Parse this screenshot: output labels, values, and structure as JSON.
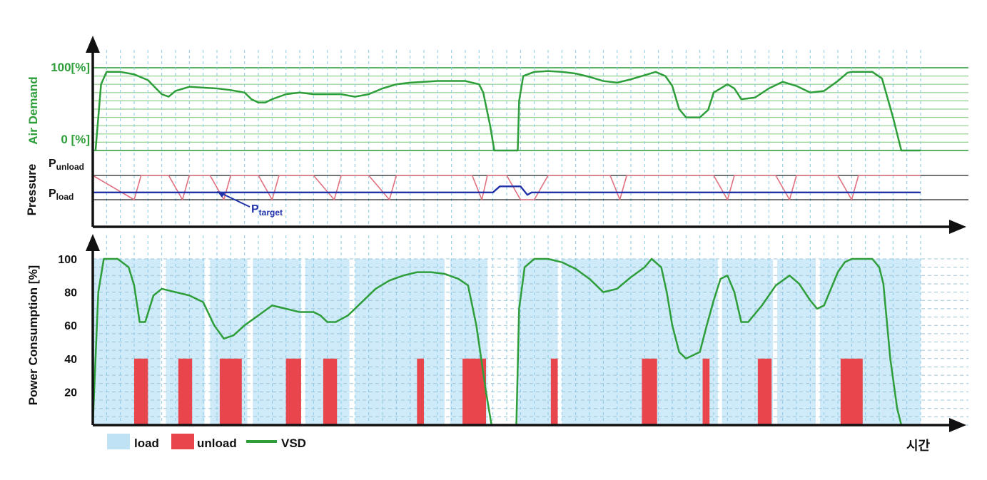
{
  "chart_data": [
    {
      "panel": "air-demand",
      "type": "line",
      "ylabel": "Air Demand",
      "tick_labels": [
        "100[%]",
        "0 [%]"
      ],
      "series": [
        {
          "name": "",
          "color": "#2e9e3a",
          "points": [
            [
              0.2,
              0
            ],
            [
              0.6,
              80
            ],
            [
              1,
              95
            ],
            [
              2,
              95
            ],
            [
              3,
              92
            ],
            [
              4,
              85
            ],
            [
              5,
              68
            ],
            [
              5.5,
              65
            ],
            [
              6,
              72
            ],
            [
              7,
              77
            ],
            [
              8,
              76
            ],
            [
              9,
              75
            ],
            [
              10,
              73
            ],
            [
              11,
              70
            ],
            [
              11.5,
              62
            ],
            [
              12,
              58
            ],
            [
              12.5,
              58
            ],
            [
              13,
              62
            ],
            [
              14,
              68
            ],
            [
              15,
              70
            ],
            [
              16,
              68
            ],
            [
              17,
              68
            ],
            [
              18,
              68
            ],
            [
              19,
              65
            ],
            [
              20,
              68
            ],
            [
              21,
              75
            ],
            [
              22,
              80
            ],
            [
              23,
              82
            ],
            [
              24,
              83
            ],
            [
              25,
              84
            ],
            [
              26,
              84
            ],
            [
              27,
              84
            ],
            [
              28,
              80
            ],
            [
              28.3,
              70
            ],
            [
              28.8,
              30
            ],
            [
              29.1,
              0
            ],
            [
              30.8,
              0
            ],
            [
              30.9,
              60
            ],
            [
              31.2,
              90
            ],
            [
              32,
              95
            ],
            [
              33,
              96
            ],
            [
              34,
              95
            ],
            [
              35,
              93
            ],
            [
              36,
              89
            ],
            [
              37,
              84
            ],
            [
              38,
              82
            ],
            [
              39,
              86
            ],
            [
              40,
              91
            ],
            [
              40.8,
              95
            ],
            [
              41.5,
              90
            ],
            [
              42,
              78
            ],
            [
              42.5,
              50
            ],
            [
              43,
              40
            ],
            [
              44,
              40
            ],
            [
              44.6,
              49
            ],
            [
              45,
              70
            ],
            [
              46,
              80
            ],
            [
              46.5,
              75
            ],
            [
              47,
              62
            ],
            [
              48,
              64
            ],
            [
              49,
              75
            ],
            [
              50,
              83
            ],
            [
              51,
              78
            ],
            [
              52,
              70
            ],
            [
              53,
              72
            ],
            [
              54,
              84
            ],
            [
              54.7,
              94
            ],
            [
              55,
              95
            ],
            [
              56.5,
              95
            ],
            [
              57.2,
              87
            ],
            [
              58,
              40
            ],
            [
              58.6,
              0
            ],
            [
              60,
              0
            ]
          ]
        }
      ]
    },
    {
      "panel": "pressure",
      "type": "line",
      "ylabel": "Pressure",
      "level_labels": [
        {
          "main": "P",
          "sub": "unload"
        },
        {
          "main": "P",
          "sub": "load"
        }
      ],
      "annotation": {
        "main": "P",
        "sub": "target"
      },
      "series": [
        {
          "name": "",
          "color": "#e07080",
          "points": [
            [
              0,
              1
            ],
            [
              3,
              0
            ],
            [
              3.5,
              1
            ],
            [
              4,
              1
            ],
            [
              5.5,
              1
            ],
            [
              6.5,
              0
            ],
            [
              7,
              1
            ],
            [
              8.5,
              1
            ],
            [
              9.5,
              0
            ],
            [
              10,
              1
            ],
            [
              12,
              1
            ],
            [
              13,
              0
            ],
            [
              13.5,
              1
            ],
            [
              16,
              1
            ],
            [
              17.5,
              0
            ],
            [
              18,
              1
            ],
            [
              20,
              1
            ],
            [
              21.5,
              0
            ],
            [
              22,
              1
            ],
            [
              27.5,
              1
            ],
            [
              28.2,
              0
            ],
            [
              28.6,
              1
            ],
            [
              30,
              1
            ],
            [
              31,
              0
            ],
            [
              32,
              0
            ],
            [
              33,
              1
            ],
            [
              37.5,
              1
            ],
            [
              38.2,
              0
            ],
            [
              38.7,
              1
            ],
            [
              45,
              1
            ],
            [
              46,
              0
            ],
            [
              46.5,
              1
            ],
            [
              49.5,
              1
            ],
            [
              50.5,
              0
            ],
            [
              51,
              1
            ],
            [
              54,
              1
            ],
            [
              55,
              0
            ],
            [
              55.5,
              1
            ],
            [
              60,
              1
            ]
          ]
        },
        {
          "name": "",
          "color": "#2233aa",
          "points": [
            [
              0,
              0.3
            ],
            [
              29,
              0.3
            ],
            [
              29.5,
              0.55
            ],
            [
              31,
              0.55
            ],
            [
              31.5,
              0.2
            ],
            [
              31.8,
              0.3
            ],
            [
              60,
              0.3
            ]
          ]
        }
      ]
    },
    {
      "panel": "power-consumption",
      "type": "line",
      "ylabel": "Power Consumption [%]",
      "yticks": [
        100,
        80,
        60,
        40,
        20
      ],
      "ylim": [
        0,
        100
      ],
      "xlabel": "시간",
      "legend": [
        {
          "label": "load",
          "color": "#bfe3f5"
        },
        {
          "label": "unload",
          "color": "#e8454c"
        },
        {
          "label": "VSD",
          "color": "#2e9e3a"
        }
      ],
      "unload_level": 40,
      "unload_blocks": [
        [
          3,
          4
        ],
        [
          6.2,
          7.2
        ],
        [
          9.2,
          10.8
        ],
        [
          14,
          15.1
        ],
        [
          16.7,
          17.7
        ],
        [
          23.5,
          24
        ],
        [
          26.8,
          28.5
        ],
        [
          33.2,
          33.7
        ],
        [
          39.8,
          40.9
        ],
        [
          44.2,
          44.7
        ],
        [
          48.2,
          49.2
        ],
        [
          54.2,
          55.8
        ]
      ],
      "series": [
        {
          "name": "VSD",
          "color": "#2e9e3a",
          "points": [
            [
              0,
              0
            ],
            [
              0.4,
              80
            ],
            [
              0.8,
              100
            ],
            [
              1.8,
              100
            ],
            [
              2.6,
              95
            ],
            [
              3,
              84
            ],
            [
              3.4,
              62
            ],
            [
              3.8,
              62
            ],
            [
              4.4,
              78
            ],
            [
              5,
              82
            ],
            [
              6,
              80
            ],
            [
              7,
              78
            ],
            [
              8,
              74
            ],
            [
              8.8,
              60
            ],
            [
              9.5,
              52
            ],
            [
              10.2,
              54
            ],
            [
              11,
              60
            ],
            [
              12,
              66
            ],
            [
              13,
              72
            ],
            [
              14,
              70
            ],
            [
              15,
              68
            ],
            [
              16,
              68
            ],
            [
              16.5,
              66
            ],
            [
              17,
              62
            ],
            [
              17.6,
              62
            ],
            [
              18.5,
              66
            ],
            [
              19.5,
              74
            ],
            [
              20.5,
              82
            ],
            [
              21.5,
              87
            ],
            [
              22.5,
              90
            ],
            [
              23.5,
              92
            ],
            [
              24.5,
              92
            ],
            [
              25.5,
              91
            ],
            [
              26.5,
              88
            ],
            [
              27.2,
              84
            ],
            [
              27.8,
              60
            ],
            [
              28.5,
              20
            ],
            [
              28.9,
              0
            ],
            [
              30.7,
              0
            ],
            [
              30.9,
              70
            ],
            [
              31.3,
              95
            ],
            [
              32,
              100
            ],
            [
              33,
              100
            ],
            [
              34,
              98
            ],
            [
              35,
              94
            ],
            [
              36,
              88
            ],
            [
              37,
              80
            ],
            [
              38,
              82
            ],
            [
              39,
              89
            ],
            [
              40,
              95
            ],
            [
              40.5,
              100
            ],
            [
              41.2,
              95
            ],
            [
              41.6,
              80
            ],
            [
              42,
              60
            ],
            [
              42.5,
              44
            ],
            [
              43,
              40
            ],
            [
              44,
              44
            ],
            [
              44.5,
              60
            ],
            [
              45,
              75
            ],
            [
              45.5,
              88
            ],
            [
              46,
              90
            ],
            [
              46.5,
              80
            ],
            [
              47,
              62
            ],
            [
              47.5,
              62
            ],
            [
              48.5,
              72
            ],
            [
              49.5,
              84
            ],
            [
              50.5,
              90
            ],
            [
              51.2,
              85
            ],
            [
              52,
              75
            ],
            [
              52.5,
              70
            ],
            [
              53,
              72
            ],
            [
              53.5,
              82
            ],
            [
              54,
              92
            ],
            [
              54.5,
              98
            ],
            [
              55,
              100
            ],
            [
              56.5,
              100
            ],
            [
              57,
              95
            ],
            [
              57.3,
              85
            ],
            [
              57.8,
              40
            ],
            [
              58.3,
              10
            ],
            [
              58.6,
              0
            ]
          ]
        }
      ]
    }
  ]
}
